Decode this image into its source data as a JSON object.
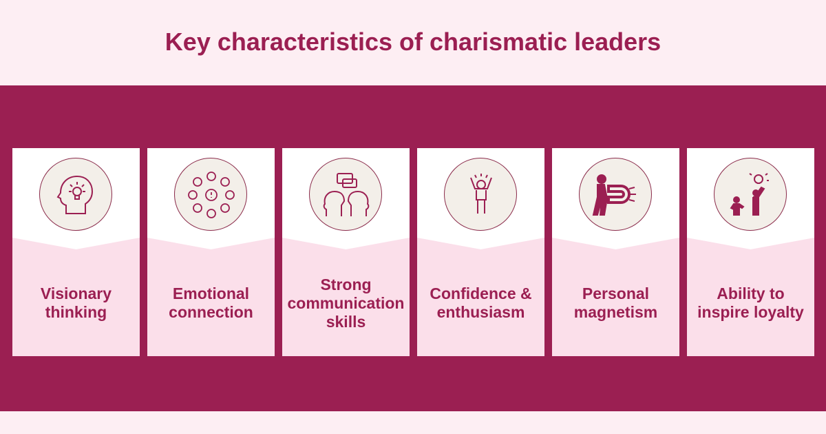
{
  "title": "Key characteristics of charismatic leaders",
  "colors": {
    "accent": "#9b1f52",
    "background": "#fdeef3",
    "card_lower": "#fbdfea",
    "icon_circle": "#f3efe9"
  },
  "cards": [
    {
      "label": "Visionary thinking",
      "icon": "head-lightbulb-icon"
    },
    {
      "label": "Emotional connection",
      "icon": "emotions-network-icon"
    },
    {
      "label": "Strong communication skills",
      "icon": "two-heads-speech-icon"
    },
    {
      "label": "Confidence & enthusiasm",
      "icon": "cheering-person-icon"
    },
    {
      "label": "Personal magnetism",
      "icon": "person-magnet-icon"
    },
    {
      "label": "Ability to inspire loyalty",
      "icon": "leader-follower-lightbulb-icon"
    }
  ]
}
